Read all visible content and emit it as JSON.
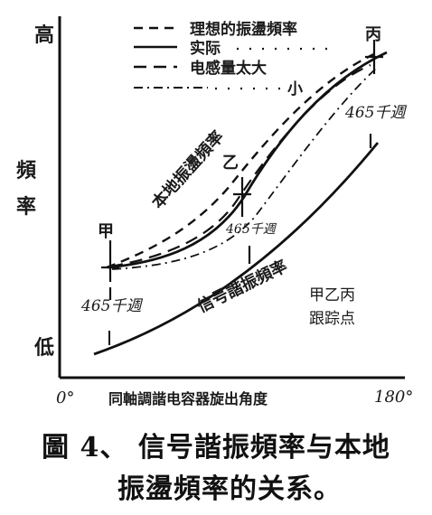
{
  "figure": {
    "legend": [
      {
        "label": "理想的振盪頻率",
        "style": "dashed"
      },
      {
        "label": "实际",
        "style": "solid"
      },
      {
        "label": "电感量太大",
        "style": "long-dash"
      },
      {
        "label": "小",
        "style": "dash-dot"
      }
    ],
    "y_axis": {
      "high": "高",
      "low": "低",
      "title_1": "頻",
      "title_2": "率"
    },
    "x_axis": {
      "start": "0°",
      "end": "180°",
      "title": "同軸調諧电容器旋出角度"
    },
    "annotations": {
      "point_a": "甲",
      "point_b": "乙",
      "point_c": "丙",
      "freq_a": "465千週",
      "freq_b": "465千週",
      "freq_c": "465千週",
      "local_osc": "本地振盪頻率",
      "signal": "信号諧振頻率",
      "tracking_1": "甲乙丙",
      "tracking_2": "跟踪点"
    },
    "caption_line1": "圖 4、 信号諧振頻率与本地",
    "caption_line2": "振盪頻率的关系。"
  }
}
